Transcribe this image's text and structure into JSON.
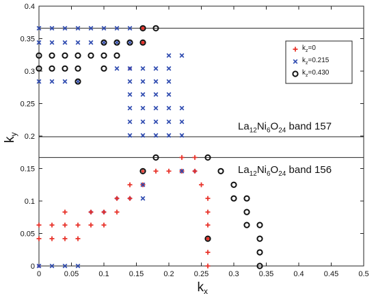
{
  "chart_data": {
    "type": "scatter",
    "title": "",
    "xlabel": {
      "main": "k",
      "sub": "x"
    },
    "ylabel": {
      "main": "k",
      "sub": "y"
    },
    "xlim": [
      0,
      0.5
    ],
    "ylim": [
      0,
      0.4
    ],
    "xticks": [
      0,
      0.05,
      0.1,
      0.15,
      0.2,
      0.25,
      0.3,
      0.35,
      0.4,
      0.45,
      0.5
    ],
    "xtick_labels": [
      "0",
      "0.05",
      "0.1",
      "0.15",
      "0.2",
      "0.25",
      "0.3",
      "0.35",
      "0.4",
      "0.45",
      "0.5"
    ],
    "yticks": [
      0,
      0.05,
      0.1,
      0.15,
      0.2,
      0.25,
      0.3,
      0.35,
      0.4
    ],
    "ytick_labels": [
      "0",
      "0.05",
      "0.1",
      "0.15",
      "0.2",
      "0.25",
      "0.3",
      "0.35",
      "0.4"
    ],
    "grid": false,
    "legend_position": "top-right",
    "hlines": [
      0.366,
      0.199,
      0.167
    ],
    "annotations": [
      {
        "parts": [
          "La",
          "12",
          "Ni",
          "6",
          "O",
          "24",
          " band 157"
        ],
        "x": 0.3,
        "y": 0.21
      },
      {
        "parts": [
          "La",
          "12",
          "Ni",
          "6",
          "O",
          "24",
          " band 156"
        ],
        "x": 0.3,
        "y": 0.143
      }
    ],
    "series": [
      {
        "label_main": "k",
        "label_sub": "z",
        "label_value": "=0",
        "marker": "plus",
        "color": "#e8332a",
        "points": [
          [
            0,
            0.042
          ],
          [
            0,
            0.063
          ],
          [
            0.02,
            0.042
          ],
          [
            0.02,
            0.063
          ],
          [
            0.04,
            0.042
          ],
          [
            0.04,
            0.063
          ],
          [
            0.04,
            0.083
          ],
          [
            0.06,
            0.042
          ],
          [
            0.06,
            0.063
          ],
          [
            0.08,
            0.063
          ],
          [
            0.08,
            0.083
          ],
          [
            0.1,
            0.063
          ],
          [
            0.1,
            0.083
          ],
          [
            0.12,
            0.083
          ],
          [
            0.12,
            0.104
          ],
          [
            0.14,
            0.104
          ],
          [
            0.14,
            0.125
          ],
          [
            0.16,
            0.125
          ],
          [
            0.16,
            0.146
          ],
          [
            0.16,
            0.344
          ],
          [
            0.16,
            0.366
          ],
          [
            0.18,
            0.146
          ],
          [
            0.2,
            0.146
          ],
          [
            0.22,
            0.146
          ],
          [
            0.22,
            0.167
          ],
          [
            0.24,
            0.146
          ],
          [
            0.24,
            0.167
          ],
          [
            0.25,
            0.125
          ],
          [
            0.26,
            0.0
          ],
          [
            0.26,
            0.021
          ],
          [
            0.26,
            0.042
          ],
          [
            0.26,
            0.063
          ],
          [
            0.26,
            0.083
          ],
          [
            0.26,
            0.104
          ]
        ]
      },
      {
        "label_main": "k",
        "label_sub": "z",
        "label_value": "=0.215",
        "marker": "x",
        "color": "#2f4bb0",
        "points": [
          [
            0,
            0.366
          ],
          [
            0.02,
            0.366
          ],
          [
            0.04,
            0.366
          ],
          [
            0.06,
            0.366
          ],
          [
            0.08,
            0.366
          ],
          [
            0.1,
            0.366
          ],
          [
            0.12,
            0.366
          ],
          [
            0.14,
            0.366
          ],
          [
            0,
            0.344
          ],
          [
            0.02,
            0.344
          ],
          [
            0.04,
            0.344
          ],
          [
            0.06,
            0.344
          ],
          [
            0.08,
            0.344
          ],
          [
            0.1,
            0.344
          ],
          [
            0.12,
            0.344
          ],
          [
            0.14,
            0.344
          ],
          [
            0,
            0.284
          ],
          [
            0.02,
            0.284
          ],
          [
            0.04,
            0.284
          ],
          [
            0.06,
            0.284
          ],
          [
            0.12,
            0.304
          ],
          [
            0.14,
            0.304
          ],
          [
            0.14,
            0.284
          ],
          [
            0.16,
            0.304
          ],
          [
            0.16,
            0.284
          ],
          [
            0.18,
            0.304
          ],
          [
            0.18,
            0.284
          ],
          [
            0.2,
            0.324
          ],
          [
            0.2,
            0.304
          ],
          [
            0.22,
            0.324
          ],
          [
            0.2,
            0.284
          ],
          [
            0.14,
            0.264
          ],
          [
            0.16,
            0.264
          ],
          [
            0.18,
            0.264
          ],
          [
            0.2,
            0.264
          ],
          [
            0.14,
            0.243
          ],
          [
            0.16,
            0.243
          ],
          [
            0.18,
            0.243
          ],
          [
            0.2,
            0.243
          ],
          [
            0.22,
            0.243
          ],
          [
            0.14,
            0.222
          ],
          [
            0.16,
            0.222
          ],
          [
            0.18,
            0.222
          ],
          [
            0.2,
            0.222
          ],
          [
            0.22,
            0.222
          ],
          [
            0.14,
            0.201
          ],
          [
            0.16,
            0.201
          ],
          [
            0.18,
            0.201
          ],
          [
            0.2,
            0.201
          ],
          [
            0.22,
            0.201
          ],
          [
            0.16,
            0.104
          ],
          [
            0.16,
            0.125
          ],
          [
            0.22,
            0.146
          ],
          [
            0,
            0.0
          ],
          [
            0.02,
            0.0
          ],
          [
            0.04,
            0.0
          ],
          [
            0.06,
            0.0
          ]
        ]
      },
      {
        "label_main": "k",
        "label_sub": "z",
        "label_value": "=0.430",
        "marker": "circle",
        "color": "#111111",
        "points": [
          [
            0,
            0.324
          ],
          [
            0.02,
            0.324
          ],
          [
            0.04,
            0.324
          ],
          [
            0.06,
            0.324
          ],
          [
            0.08,
            0.324
          ],
          [
            0.1,
            0.324
          ],
          [
            0.12,
            0.324
          ],
          [
            0,
            0.304
          ],
          [
            0.02,
            0.304
          ],
          [
            0.04,
            0.304
          ],
          [
            0.06,
            0.304
          ],
          [
            0.1,
            0.304
          ],
          [
            0.06,
            0.284
          ],
          [
            0.1,
            0.344
          ],
          [
            0.12,
            0.344
          ],
          [
            0.14,
            0.344
          ],
          [
            0.16,
            0.344
          ],
          [
            0.16,
            0.366
          ],
          [
            0.18,
            0.366
          ],
          [
            0.16,
            0.146
          ],
          [
            0.18,
            0.167
          ],
          [
            0.26,
            0.167
          ],
          [
            0.26,
            0.042
          ],
          [
            0.28,
            0.146
          ],
          [
            0.3,
            0.125
          ],
          [
            0.3,
            0.104
          ],
          [
            0.32,
            0.104
          ],
          [
            0.32,
            0.083
          ],
          [
            0.32,
            0.063
          ],
          [
            0.34,
            0.063
          ],
          [
            0.34,
            0.042
          ],
          [
            0.34,
            0.021
          ],
          [
            0.34,
            0.0
          ]
        ]
      }
    ],
    "mixed_points": [
      [
        0.14,
        0.304
      ],
      [
        0.08,
        0.083
      ],
      [
        0.1,
        0.083
      ],
      [
        0.12,
        0.104
      ],
      [
        0.14,
        0.104
      ],
      [
        0.16,
        0.125
      ],
      [
        0.24,
        0.146
      ],
      [
        0.0,
        0.0
      ]
    ]
  }
}
